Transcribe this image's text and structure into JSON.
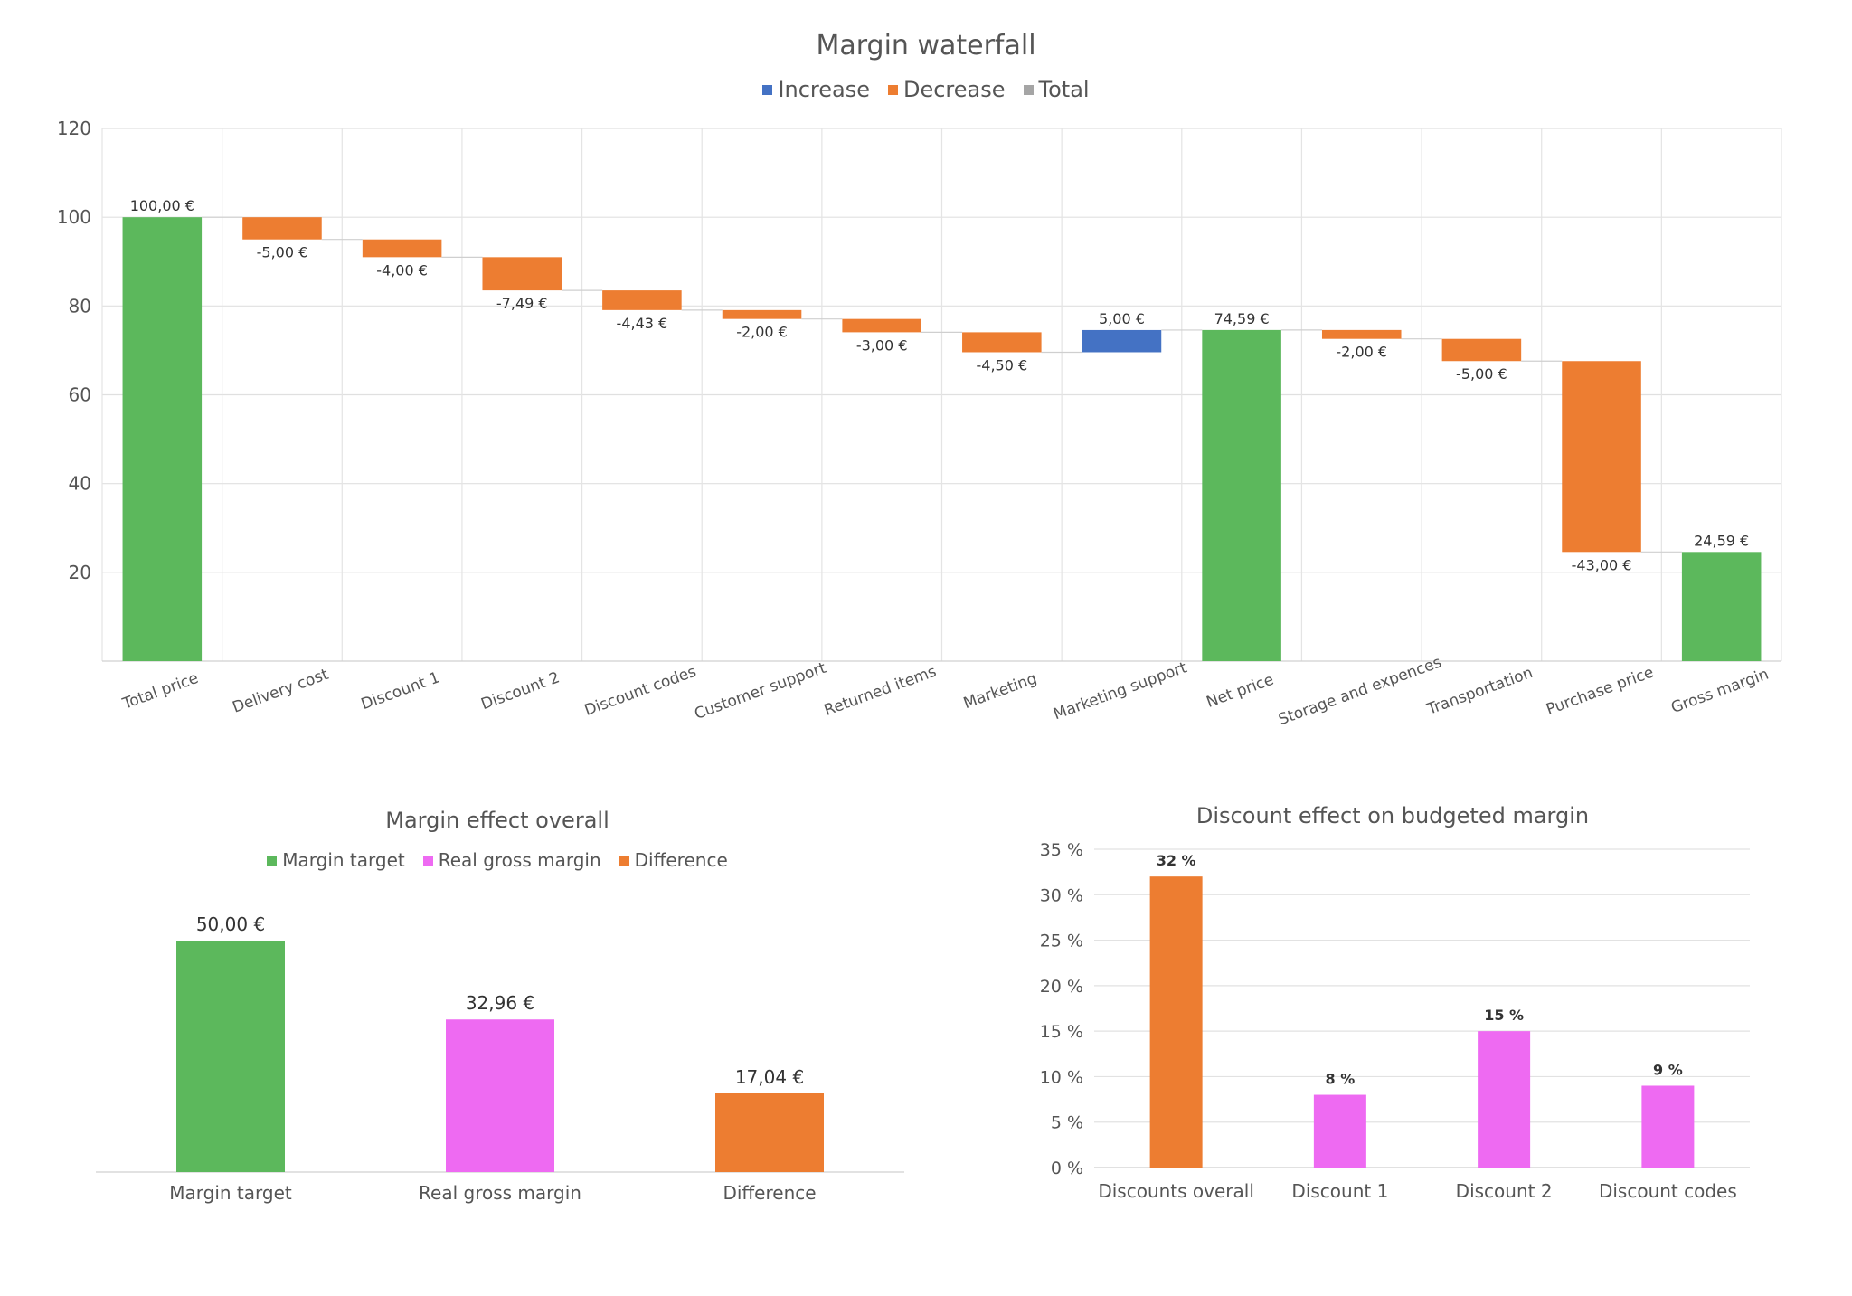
{
  "chart_data": [
    {
      "type": "waterfall",
      "title": "Margin waterfall",
      "legend": {
        "position": "top",
        "entries": [
          {
            "name": "Increase",
            "color": "#4472C4"
          },
          {
            "name": "Decrease",
            "color": "#ED7D31"
          },
          {
            "name": "Total",
            "color": "#A5A5A5"
          }
        ]
      },
      "ylim": [
        0,
        120
      ],
      "yticks": [
        20,
        40,
        60,
        80,
        100,
        120
      ],
      "grid": true,
      "total_color": "#5CB85C",
      "categories": [
        "Total price",
        "Delivery cost",
        "Discount 1",
        "Discount 2",
        "Discount codes",
        "Customer support",
        "Returned items",
        "Marketing",
        "Marketing support",
        "Net price",
        "Storage and expences",
        "Transportation",
        "Purchase price",
        "Gross margin"
      ],
      "values": [
        100.0,
        -5.0,
        -4.0,
        -7.49,
        -4.43,
        -2.0,
        -3.0,
        -4.5,
        5.0,
        74.59,
        -2.0,
        -5.0,
        -43.0,
        24.59
      ],
      "kinds": [
        "total",
        "decrease",
        "decrease",
        "decrease",
        "decrease",
        "decrease",
        "decrease",
        "decrease",
        "increase",
        "total",
        "decrease",
        "decrease",
        "decrease",
        "total"
      ],
      "labels": [
        "100,00 €",
        "-5,00 €",
        "-4,00 €",
        "-7,49 €",
        "-4,43 €",
        "-2,00 €",
        "-3,00 €",
        "-4,50 €",
        "5,00 €",
        "74,59 €",
        "-2,00 €",
        "-5,00 €",
        "-43,00 €",
        "24,59 €"
      ]
    },
    {
      "type": "bar",
      "title": "Margin effect overall",
      "legend": {
        "position": "top",
        "entries": [
          {
            "name": "Margin target",
            "color": "#5CB85C"
          },
          {
            "name": "Real gross margin",
            "color": "#EE6AF2"
          },
          {
            "name": "Difference",
            "color": "#ED7D31"
          }
        ]
      },
      "categories": [
        "Margin target",
        "Real gross margin",
        "Difference"
      ],
      "values": [
        50.0,
        32.96,
        17.04
      ],
      "labels": [
        "50,00 €",
        "32,96 €",
        "17,04 €"
      ],
      "colors": [
        "#5CB85C",
        "#EE6AF2",
        "#ED7D31"
      ],
      "ylim": [
        0,
        50
      ],
      "grid": false
    },
    {
      "type": "bar",
      "title": "Discount effect on budgeted margin",
      "categories": [
        "Discounts overall",
        "Discount 1",
        "Discount 2",
        "Discount codes"
      ],
      "values": [
        32,
        8,
        15,
        9
      ],
      "labels": [
        "32 %",
        "8 %",
        "15 %",
        "9 %"
      ],
      "colors": [
        "#ED7D31",
        "#EE6AF2",
        "#EE6AF2",
        "#EE6AF2"
      ],
      "ylim": [
        0,
        35
      ],
      "yticks": [
        0,
        5,
        10,
        15,
        20,
        25,
        30,
        35
      ],
      "ytick_labels": [
        "0 %",
        "5 %",
        "10 %",
        "15 %",
        "20 %",
        "25 %",
        "30 %",
        "35 %"
      ],
      "grid": true
    }
  ]
}
